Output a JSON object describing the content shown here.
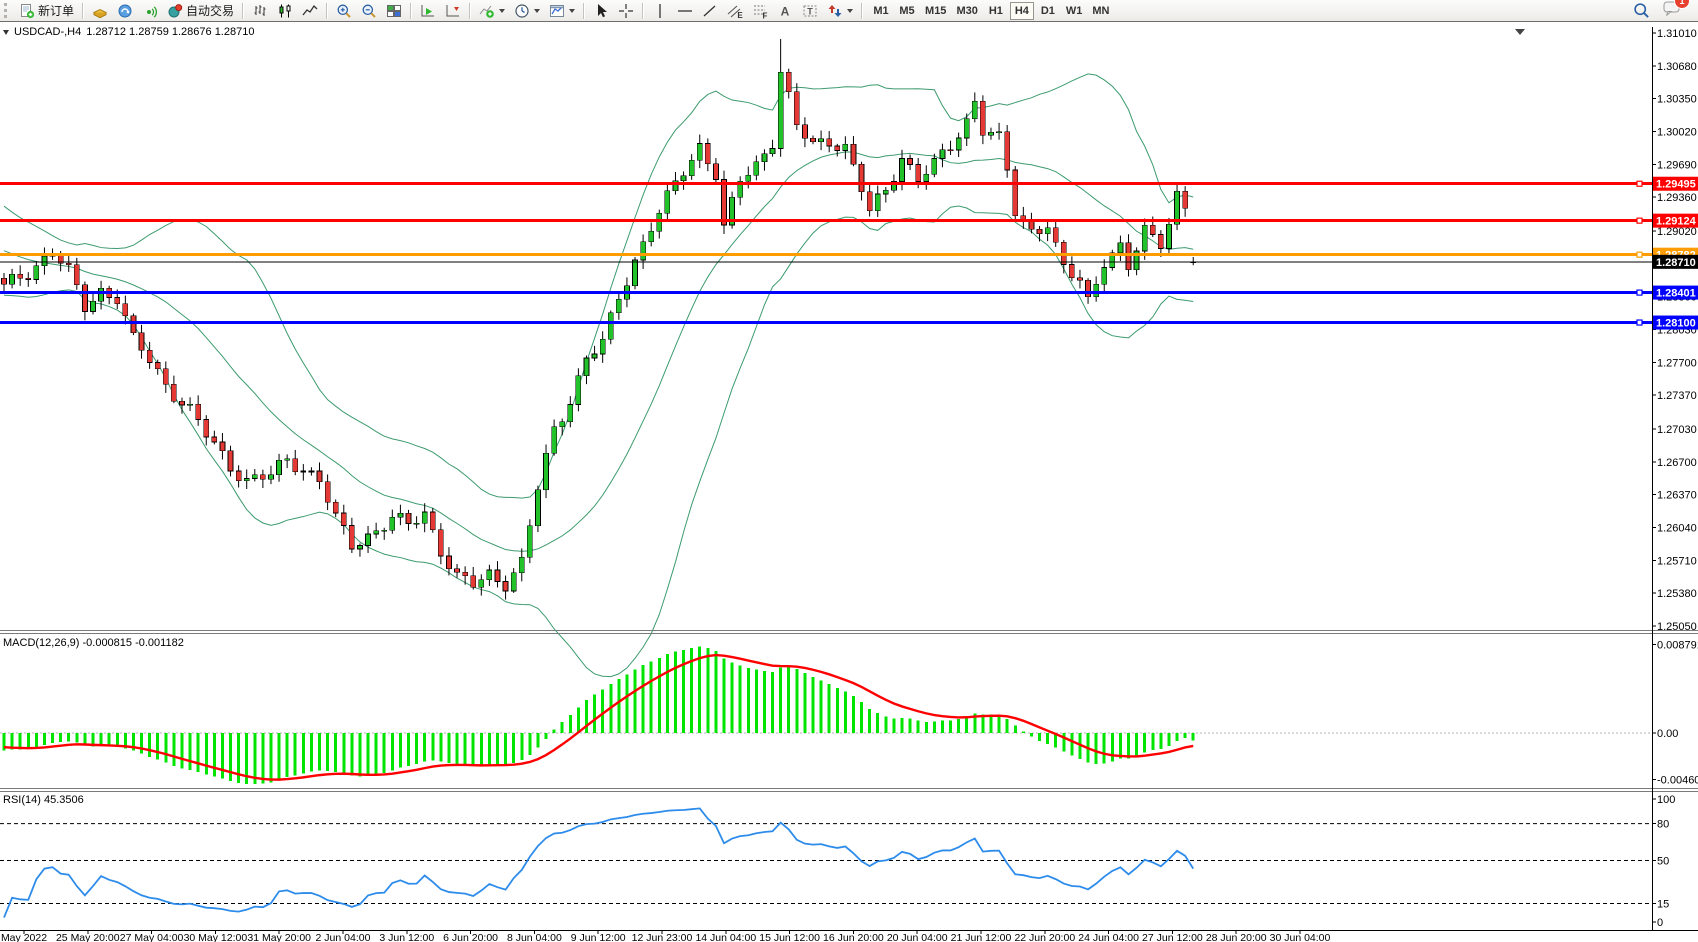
{
  "toolbar": {
    "new_order_label": "新订单",
    "autotrade_label": "自动交易",
    "timeframes": [
      "M1",
      "M5",
      "M15",
      "M30",
      "H1",
      "H4",
      "D1",
      "W1",
      "MN"
    ],
    "active_timeframe": "H4",
    "notification_badge": "1",
    "tool_letters": {
      "channel": "E",
      "fibonacci": "F",
      "text": "A",
      "label": "T"
    }
  },
  "chart": {
    "symbol_period": "USDCAD-,H4",
    "ohlc_display": "1.28712 1.28759 1.28676 1.28710",
    "price_axis": [
      "1.31010",
      "1.30680",
      "1.30350",
      "1.30020",
      "1.29690",
      "1.29360",
      "1.29020",
      "1.28690",
      "1.28360",
      "1.28030",
      "1.27700",
      "1.27370",
      "1.27030",
      "1.26700",
      "1.26370",
      "1.26040",
      "1.25710",
      "1.25380",
      "1.25050"
    ],
    "hlines": [
      {
        "label": "1.29495",
        "value": 1.29495,
        "color": "#ff0000"
      },
      {
        "label": "1.29124",
        "value": 1.29124,
        "color": "#ff0000"
      },
      {
        "label": "1.28782",
        "value": 1.28782,
        "color": "#ff9c00"
      },
      {
        "label": "1.28401",
        "value": 1.28401,
        "color": "#0000ff"
      },
      {
        "label": "1.28100",
        "value": 1.281,
        "color": "#0000ff"
      }
    ],
    "bid": {
      "label": "1.28710",
      "value": 1.2871
    },
    "time_axis": [
      "May 2022",
      "25 May 20:00",
      "27 May 04:00",
      "30 May 12:00",
      "31 May 20:00",
      "2 Jun 04:00",
      "3 Jun 12:00",
      "6 Jun 20:00",
      "8 Jun 04:00",
      "9 Jun 12:00",
      "12 Jun 23:00",
      "14 Jun 04:00",
      "15 Jun 12:00",
      "16 Jun 20:00",
      "20 Jun 04:00",
      "21 Jun 12:00",
      "22 Jun 20:00",
      "24 Jun 04:00",
      "27 Jun 12:00",
      "28 Jun 20:00",
      "30 Jun 04:00"
    ]
  },
  "macd": {
    "label": "MACD(12,26,9)",
    "values": "-0.000815 -0.001182",
    "axis": [
      "0.008791",
      "0.00",
      "-0.004601"
    ]
  },
  "rsi": {
    "label": "RSI(14)",
    "value": "45.3506",
    "levels": [
      80,
      50,
      15
    ],
    "axis": [
      "100",
      "80",
      "50",
      "15",
      "0"
    ]
  },
  "colors": {
    "candle_up": "#22c32a",
    "candle_down": "#e53935",
    "bollinger": "#3c9b6e",
    "macd_hist": "#00e400",
    "macd_signal": "#ff0000",
    "rsi_line": "#2d8ceb",
    "bid_line": "#000000"
  },
  "chart_data": {
    "type": "candlestick",
    "symbol": "USDCAD-",
    "period": "H4",
    "n_candles": 148,
    "price_range": {
      "max": 1.3101,
      "min": 1.2505
    },
    "last": {
      "open": 1.28712,
      "high": 1.28759,
      "low": 1.28676,
      "close": 1.2871
    },
    "spike": {
      "index": 96,
      "high": 1.3095
    },
    "bollinger": {
      "period": 20,
      "deviation": 2
    },
    "macd_params": {
      "fast": 12,
      "slow": 26,
      "signal": 9
    },
    "rsi_period": 14,
    "close_anchors": [
      [
        0,
        1.2845
      ],
      [
        3,
        1.286
      ],
      [
        6,
        1.2883
      ],
      [
        8,
        1.286
      ],
      [
        10,
        1.2825
      ],
      [
        12,
        1.2842
      ],
      [
        14,
        1.2836
      ],
      [
        16,
        1.2792
      ],
      [
        18,
        1.2772
      ],
      [
        20,
        1.2748
      ],
      [
        23,
        1.2722
      ],
      [
        25,
        1.2697
      ],
      [
        28,
        1.2666
      ],
      [
        30,
        1.2652
      ],
      [
        33,
        1.2656
      ],
      [
        35,
        1.2672
      ],
      [
        37,
        1.2664
      ],
      [
        39,
        1.2652
      ],
      [
        41,
        1.2612
      ],
      [
        43,
        1.2586
      ],
      [
        45,
        1.2596
      ],
      [
        48,
        1.2613
      ],
      [
        50,
        1.2606
      ],
      [
        52,
        1.2619
      ],
      [
        54,
        1.2582
      ],
      [
        56,
        1.2553
      ],
      [
        58,
        1.2546
      ],
      [
        60,
        1.2557
      ],
      [
        62,
        1.2549
      ],
      [
        64,
        1.2568
      ],
      [
        66,
        1.2643
      ],
      [
        68,
        1.2703
      ],
      [
        70,
        1.2733
      ],
      [
        72,
        1.2773
      ],
      [
        74,
        1.2789
      ],
      [
        76,
        1.2836
      ],
      [
        78,
        1.2873
      ],
      [
        80,
        1.2906
      ],
      [
        82,
        1.2934
      ],
      [
        84,
        1.2963
      ],
      [
        86,
        1.2988
      ],
      [
        88,
        1.2959
      ],
      [
        89,
        1.2903
      ],
      [
        91,
        1.2953
      ],
      [
        93,
        1.2969
      ],
      [
        95,
        1.2993
      ],
      [
        96,
        1.3063
      ],
      [
        98,
        1.3006
      ],
      [
        100,
        1.2989
      ],
      [
        102,
        1.2994
      ],
      [
        104,
        1.2986
      ],
      [
        106,
        1.2943
      ],
      [
        107,
        1.2921
      ],
      [
        109,
        1.2944
      ],
      [
        111,
        1.2977
      ],
      [
        113,
        1.2953
      ],
      [
        115,
        1.2968
      ],
      [
        117,
        1.2989
      ],
      [
        119,
        1.3013
      ],
      [
        120,
        1.3033
      ],
      [
        121,
        1.3003
      ],
      [
        123,
        1.2993
      ],
      [
        124,
        1.2963
      ],
      [
        125,
        1.2923
      ],
      [
        127,
        1.2903
      ],
      [
        129,
        1.2908
      ],
      [
        130,
        1.2883
      ],
      [
        131,
        1.2863
      ],
      [
        133,
        1.2853
      ],
      [
        134,
        1.2833
      ],
      [
        135,
        1.2853
      ],
      [
        136,
        1.2873
      ],
      [
        138,
        1.2883
      ],
      [
        139,
        1.2863
      ],
      [
        140,
        1.2883
      ],
      [
        141,
        1.2903
      ],
      [
        143,
        1.2893
      ],
      [
        144,
        1.2913
      ],
      [
        145,
        1.2937
      ],
      [
        146,
        1.2923
      ],
      [
        147,
        1.2871
      ]
    ]
  }
}
